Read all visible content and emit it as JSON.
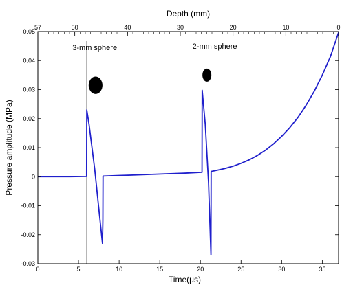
{
  "chart_data": {
    "type": "line",
    "xlabel": "Time(μs)",
    "ylabel": "Pressure amplitude (MPa)",
    "top_xlabel": "Depth (mm)",
    "xlim": [
      0,
      37
    ],
    "ylim": [
      -0.03,
      0.05
    ],
    "top_xlim": [
      57,
      0
    ],
    "xticks": [
      0,
      5,
      10,
      15,
      20,
      25,
      30,
      35
    ],
    "yticks": [
      -0.03,
      -0.02,
      -0.01,
      0,
      0.01,
      0.02,
      0.03,
      0.04,
      0.05
    ],
    "top_xticks": [
      57,
      50,
      40,
      30,
      20,
      10,
      0
    ],
    "xtick_labels": [
      "0",
      "5",
      "10",
      "15",
      "20",
      "25",
      "30",
      "35"
    ],
    "ytick_labels": [
      "-0.03",
      "-0.02",
      "-0.01",
      "0",
      "0.01",
      "0.02",
      "0.03",
      "0.04",
      "0.05"
    ],
    "top_xtick_labels": [
      "57",
      "50",
      "40",
      "30",
      "20",
      "10",
      "0"
    ],
    "grid": false,
    "line_color": "#1f1fcc",
    "series": [
      {
        "x": [
          0,
          2,
          4,
          6.0,
          6.02,
          6.3,
          7.0,
          7.5,
          7.95,
          8.0,
          8.02,
          10,
          12,
          14,
          16,
          18,
          20.2,
          20.22,
          20.6,
          21.0,
          21.3,
          21.32,
          22,
          23,
          24,
          25,
          26,
          27,
          28,
          29,
          30,
          31,
          32,
          33,
          34,
          35,
          36,
          37
        ],
        "y": [
          0,
          0,
          0,
          0.0001,
          0.023,
          0.018,
          0.0025,
          -0.011,
          -0.023,
          -0.015,
          0.0002,
          0.0004,
          0.0006,
          0.0008,
          0.001,
          0.0012,
          0.0015,
          0.0298,
          0.018,
          -0.002,
          -0.027,
          0.0018,
          0.0022,
          0.0028,
          0.0036,
          0.0046,
          0.0058,
          0.0073,
          0.0091,
          0.0113,
          0.0139,
          0.0169,
          0.0204,
          0.0246,
          0.0294,
          0.035,
          0.0414,
          0.0497
        ]
      }
    ],
    "spheres": [
      {
        "label": "3-mm sphere",
        "x_start": 6.0,
        "x_end": 8.0,
        "center_x": 7.1,
        "center_y": 0.0315,
        "width_x": 1.7,
        "height_y": 0.006
      },
      {
        "label": "2-mm sphere",
        "x_start": 20.2,
        "x_end": 21.3,
        "center_x": 20.8,
        "center_y": 0.035,
        "width_x": 1.1,
        "height_y": 0.0045
      }
    ],
    "annotations": [
      "3-mm sphere",
      "2-mm sphere"
    ],
    "vlines_x": [
      6.0,
      8.0,
      20.2,
      21.3
    ]
  }
}
